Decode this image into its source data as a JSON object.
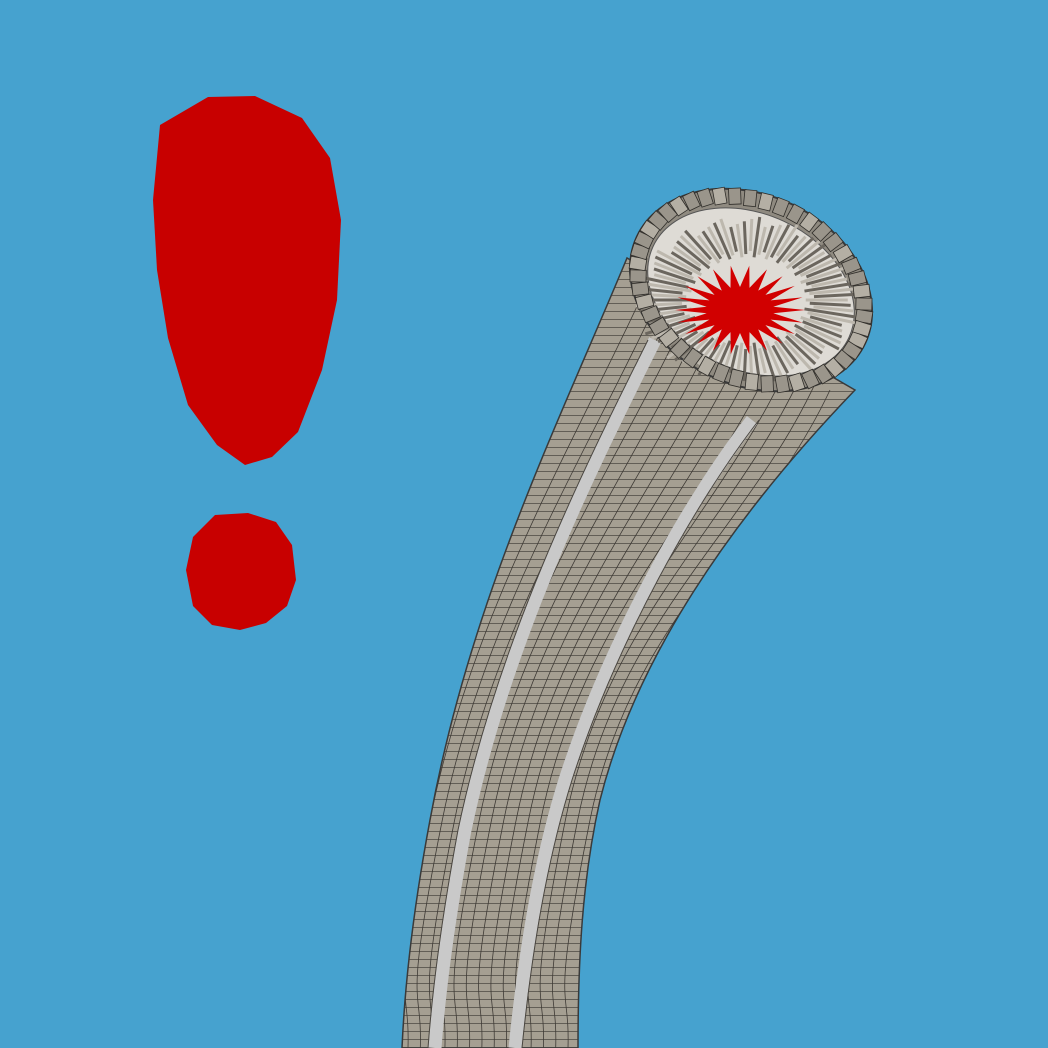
{
  "scene": {
    "background_color": "#46a2cf",
    "exclamation_color": "#c80000",
    "tube_color": "#a59f92",
    "tube_stripe_color": "#c9c9c9",
    "tube_line_color": "#3a3a3a",
    "core_color": "#d10000",
    "rim_color": "#8f8a80"
  }
}
